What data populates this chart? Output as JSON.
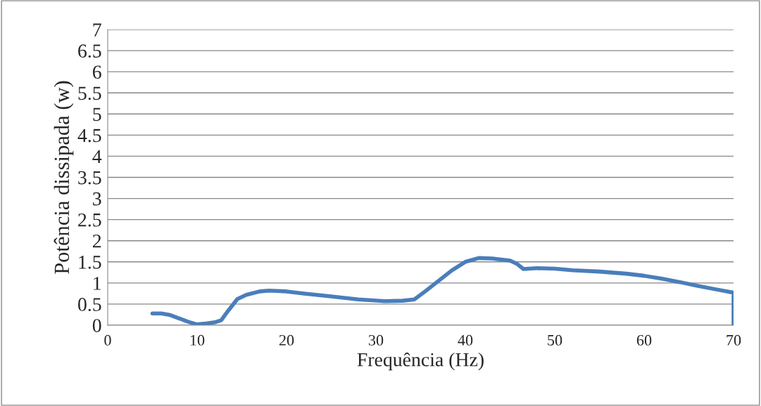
{
  "chart_data": {
    "type": "line",
    "xlabel": "Frequência (Hz)",
    "ylabel": "Potência dissipada (w)",
    "xlim": [
      0,
      70
    ],
    "xticks": [
      0,
      10,
      20,
      30,
      40,
      50,
      60,
      70
    ],
    "ylim": [
      0,
      7
    ],
    "yticks": [
      0,
      0.5,
      1,
      1.5,
      2,
      2.5,
      3,
      3.5,
      4,
      4.5,
      5,
      5.5,
      6,
      6.5,
      7
    ],
    "grid": "y",
    "legend": false,
    "marker": "none",
    "line_style": "solid",
    "series": [
      {
        "color": "#4a7ebb",
        "x": [
          5,
          6,
          7,
          8,
          9,
          10,
          11,
          12,
          12.7,
          13.5,
          14.5,
          15.5,
          17,
          18,
          19,
          20,
          22,
          25,
          28,
          31,
          33,
          34.3,
          35.5,
          37,
          38.5,
          40,
          41.5,
          43,
          45,
          45.8,
          46.5,
          48,
          50,
          52,
          55,
          58,
          60,
          62,
          64,
          66,
          68,
          70,
          70
        ],
        "values": [
          0.28,
          0.28,
          0.24,
          0.16,
          0.08,
          0.02,
          0.04,
          0.07,
          0.12,
          0.35,
          0.62,
          0.72,
          0.8,
          0.82,
          0.81,
          0.8,
          0.75,
          0.68,
          0.61,
          0.57,
          0.58,
          0.61,
          0.8,
          1.05,
          1.3,
          1.5,
          1.59,
          1.58,
          1.53,
          1.45,
          1.33,
          1.35,
          1.34,
          1.3,
          1.27,
          1.22,
          1.17,
          1.1,
          1.02,
          0.93,
          0.85,
          0.77,
          0.0
        ]
      }
    ]
  }
}
